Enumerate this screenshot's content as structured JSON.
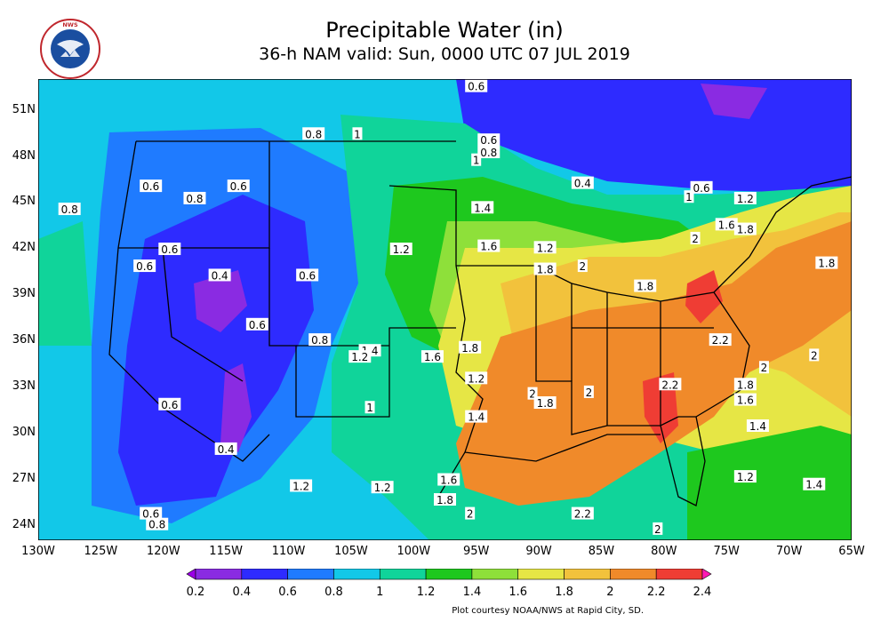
{
  "title": "Precipitable Water (in)",
  "subtitle": "36-h NAM valid: Sun, 0000 UTC 07 JUL 2019",
  "logo_text": "NATIONAL WEATHER SERVICE",
  "credit": "Plot courtesy NOAA/NWS at Rapid City, SD.",
  "lat_ticks": [
    "51N",
    "48N",
    "45N",
    "42N",
    "39N",
    "36N",
    "33N",
    "30N",
    "27N",
    "24N"
  ],
  "lon_ticks": [
    "130W",
    "125W",
    "120W",
    "115W",
    "110W",
    "105W",
    "100W",
    "95W",
    "90W",
    "85W",
    "80W",
    "75W",
    "70W",
    "65W"
  ],
  "map_data": {
    "type": "filled contour map",
    "variable": "Precipitable Water",
    "units": "in",
    "extent_lon": [
      -130,
      -65
    ],
    "extent_lat": [
      23,
      53
    ],
    "levels": [
      0.2,
      0.4,
      0.6,
      0.8,
      1,
      1.2,
      1.4,
      1.6,
      1.8,
      2,
      2.2,
      2.4
    ],
    "colors": [
      "#9b00e6",
      "#8a2be2",
      "#2e2bff",
      "#1f7bff",
      "#12c8e8",
      "#10d49a",
      "#1ec81e",
      "#8ee03a",
      "#e6e645",
      "#f2c23c",
      "#f08a2a",
      "#ef3d34",
      "#ff1ab3"
    ],
    "contour_labels": [
      {
        "text": "0.6",
        "lon": -95,
        "lat": 52.5
      },
      {
        "text": "0.8",
        "lon": -108,
        "lat": 49.4
      },
      {
        "text": "1",
        "lon": -104.5,
        "lat": 49.4
      },
      {
        "text": "0.6",
        "lon": -94,
        "lat": 49.0
      },
      {
        "text": "0.8",
        "lon": -94,
        "lat": 48.2
      },
      {
        "text": "1",
        "lon": -95,
        "lat": 47.7
      },
      {
        "text": "0.6",
        "lon": -121,
        "lat": 46.0
      },
      {
        "text": "0.8",
        "lon": -117.5,
        "lat": 45.2
      },
      {
        "text": "0.6",
        "lon": -114,
        "lat": 46.0
      },
      {
        "text": "0.8",
        "lon": -127.5,
        "lat": 44.5
      },
      {
        "text": "0.4",
        "lon": -86.5,
        "lat": 46.2
      },
      {
        "text": "0.6",
        "lon": -77,
        "lat": 45.9
      },
      {
        "text": "1",
        "lon": -78,
        "lat": 45.3
      },
      {
        "text": "1.2",
        "lon": -73.5,
        "lat": 45.2
      },
      {
        "text": "1.4",
        "lon": -94.5,
        "lat": 44.6
      },
      {
        "text": "1.6",
        "lon": -75,
        "lat": 43.5
      },
      {
        "text": "1.8",
        "lon": -73.5,
        "lat": 43.2
      },
      {
        "text": "2",
        "lon": -77.5,
        "lat": 42.6
      },
      {
        "text": "0.6",
        "lon": -119.5,
        "lat": 41.9
      },
      {
        "text": "1.2",
        "lon": -101,
        "lat": 41.9
      },
      {
        "text": "1.6",
        "lon": -94,
        "lat": 42.1
      },
      {
        "text": "1.2",
        "lon": -89.5,
        "lat": 42.0
      },
      {
        "text": "1.8",
        "lon": -67,
        "lat": 41.0
      },
      {
        "text": "0.6",
        "lon": -121.5,
        "lat": 40.8
      },
      {
        "text": "0.4",
        "lon": -115.5,
        "lat": 40.2
      },
      {
        "text": "0.6",
        "lon": -108.5,
        "lat": 40.2
      },
      {
        "text": "1.8",
        "lon": -89.5,
        "lat": 40.6
      },
      {
        "text": "2",
        "lon": -86.5,
        "lat": 40.8
      },
      {
        "text": "1.8",
        "lon": -81.5,
        "lat": 39.5
      },
      {
        "text": "0.6",
        "lon": -112.5,
        "lat": 37.0
      },
      {
        "text": "0.8",
        "lon": -107.5,
        "lat": 36.0
      },
      {
        "text": "1.4",
        "lon": -103.5,
        "lat": 35.3
      },
      {
        "text": "1.2",
        "lon": -104.3,
        "lat": 34.9
      },
      {
        "text": "1.6",
        "lon": -98.5,
        "lat": 34.9
      },
      {
        "text": "1.8",
        "lon": -95.5,
        "lat": 35.5
      },
      {
        "text": "2.2",
        "lon": -75.5,
        "lat": 36.0
      },
      {
        "text": "1.2",
        "lon": -95,
        "lat": 33.5
      },
      {
        "text": "2",
        "lon": -72,
        "lat": 34.2
      },
      {
        "text": "2",
        "lon": -68,
        "lat": 35.0
      },
      {
        "text": "0.6",
        "lon": -119.5,
        "lat": 31.8
      },
      {
        "text": "1",
        "lon": -103.5,
        "lat": 31.6
      },
      {
        "text": "2",
        "lon": -90.5,
        "lat": 32.5
      },
      {
        "text": "1.8",
        "lon": -89.5,
        "lat": 31.9
      },
      {
        "text": "2",
        "lon": -86,
        "lat": 32.6
      },
      {
        "text": "2.2",
        "lon": -79.5,
        "lat": 33.1
      },
      {
        "text": "1.8",
        "lon": -73.5,
        "lat": 33.1
      },
      {
        "text": "1.6",
        "lon": -73.5,
        "lat": 32.1
      },
      {
        "text": "1.4",
        "lon": -95,
        "lat": 31.0
      },
      {
        "text": "1.4",
        "lon": -72.5,
        "lat": 30.4
      },
      {
        "text": "0.4",
        "lon": -115,
        "lat": 28.9
      },
      {
        "text": "1.2",
        "lon": -73.5,
        "lat": 27.1
      },
      {
        "text": "1.4",
        "lon": -68,
        "lat": 26.6
      },
      {
        "text": "1.2",
        "lon": -109,
        "lat": 26.5
      },
      {
        "text": "1.2",
        "lon": -102.5,
        "lat": 26.4
      },
      {
        "text": "1.6",
        "lon": -97.2,
        "lat": 26.9
      },
      {
        "text": "1.8",
        "lon": -97.5,
        "lat": 25.6
      },
      {
        "text": "2",
        "lon": -95.5,
        "lat": 24.7
      },
      {
        "text": "2.2",
        "lon": -86.5,
        "lat": 24.7
      },
      {
        "text": "0.6",
        "lon": -121,
        "lat": 24.7
      },
      {
        "text": "0.8",
        "lon": -120.5,
        "lat": 24.0
      },
      {
        "text": "2",
        "lon": -80.5,
        "lat": 23.7
      }
    ]
  },
  "colorbar": {
    "tick_labels": [
      "0.2",
      "0.4",
      "0.6",
      "0.8",
      "1",
      "1.2",
      "1.4",
      "1.6",
      "1.8",
      "2",
      "2.2",
      "2.4"
    ]
  }
}
